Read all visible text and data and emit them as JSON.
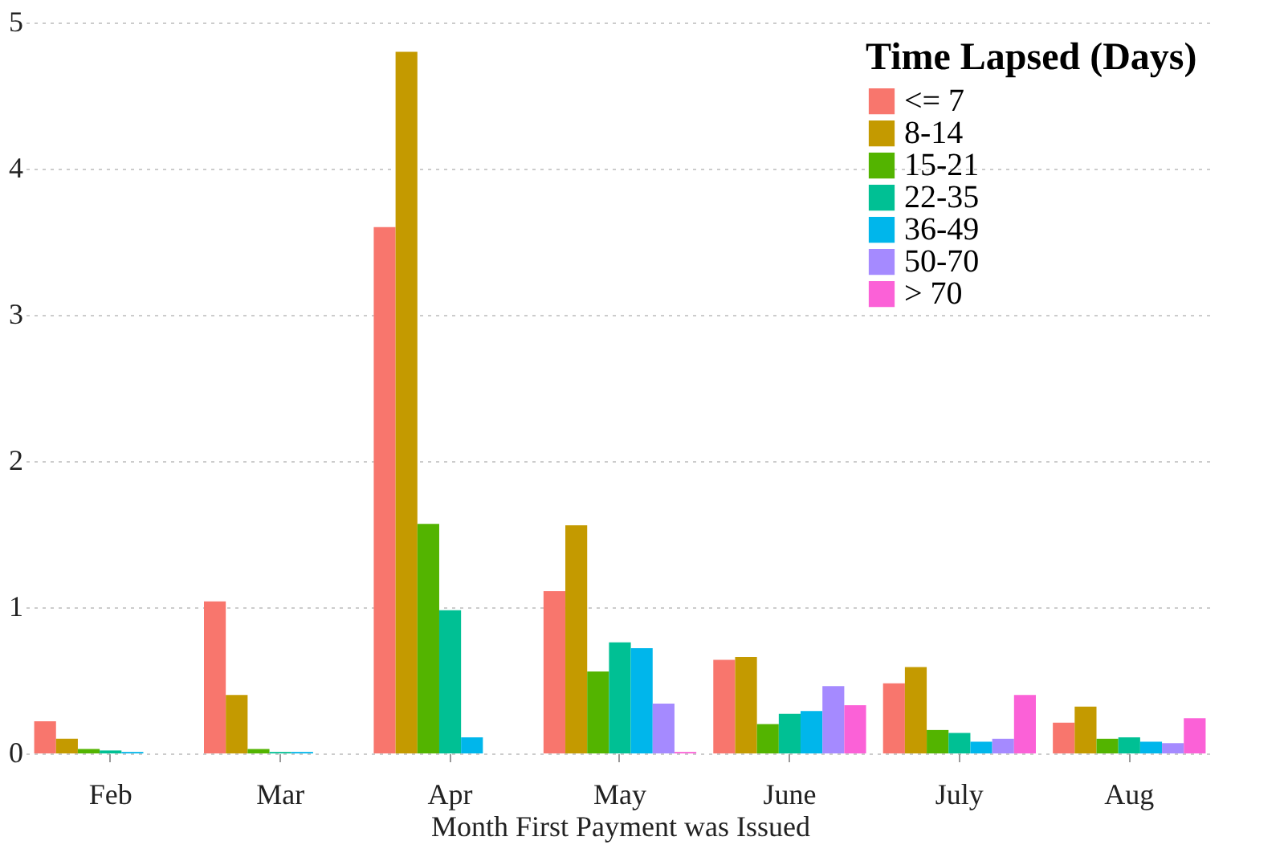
{
  "chart_data": {
    "type": "bar",
    "xlabel": "Month First Payment was Issued",
    "legend_title": "Time Lapsed (Days)",
    "categories": [
      "Feb",
      "Mar",
      "Apr",
      "May",
      "June",
      "July",
      "Aug"
    ],
    "series": [
      {
        "name": "<= 7",
        "color": "#f8766d",
        "values": [
          0.22,
          1.04,
          3.6,
          1.11,
          0.64,
          0.48,
          0.21
        ]
      },
      {
        "name": "8-14",
        "color": "#c49a00",
        "values": [
          0.1,
          0.4,
          4.8,
          1.56,
          0.66,
          0.59,
          0.32
        ]
      },
      {
        "name": "15-21",
        "color": "#53b400",
        "values": [
          0.03,
          0.03,
          1.57,
          0.56,
          0.2,
          0.16,
          0.1
        ]
      },
      {
        "name": "22-35",
        "color": "#00c094",
        "values": [
          0.02,
          0.01,
          0.98,
          0.76,
          0.27,
          0.14,
          0.11
        ]
      },
      {
        "name": "36-49",
        "color": "#00b6eb",
        "values": [
          0.01,
          0.01,
          0.11,
          0.72,
          0.29,
          0.08,
          0.08
        ]
      },
      {
        "name": "50-70",
        "color": "#a58aff",
        "values": [
          0,
          0,
          0,
          0.34,
          0.46,
          0.1,
          0.07
        ]
      },
      {
        "name": "> 70",
        "color": "#fb61d7",
        "values": [
          0,
          0,
          0,
          0.01,
          0.33,
          0.4,
          0.24
        ]
      }
    ],
    "ylim": [
      0,
      5
    ],
    "yticks": [
      0,
      1,
      2,
      3,
      4,
      5
    ],
    "grid": "y",
    "legend": "top right"
  }
}
